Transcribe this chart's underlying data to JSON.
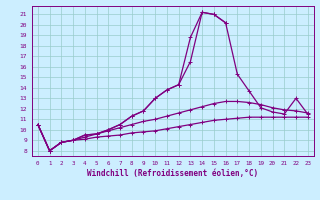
{
  "background_color": "#cceeff",
  "line_color": "#800080",
  "grid_color": "#99cccc",
  "xlabel": "Windchill (Refroidissement éolien,°C)",
  "xlabel_color": "#800080",
  "xticks": [
    0,
    1,
    2,
    3,
    4,
    5,
    6,
    7,
    8,
    9,
    10,
    11,
    12,
    13,
    14,
    15,
    16,
    17,
    18,
    19,
    20,
    21,
    22,
    23
  ],
  "yticks": [
    8,
    9,
    10,
    11,
    12,
    13,
    14,
    15,
    16,
    17,
    18,
    19,
    20,
    21
  ],
  "xlim": [
    -0.5,
    23.5
  ],
  "ylim": [
    7.5,
    21.8
  ],
  "line1_x": [
    0,
    1,
    2,
    3,
    4,
    5,
    6,
    7,
    8,
    9,
    10,
    11,
    12,
    13,
    14,
    15,
    16,
    17,
    18,
    19,
    20,
    21,
    22,
    23
  ],
  "line1_y": [
    10.5,
    8.0,
    8.8,
    9.0,
    9.5,
    9.6,
    10.0,
    10.5,
    11.3,
    11.8,
    13.0,
    13.8,
    14.3,
    16.5,
    21.2,
    21.0,
    20.2,
    15.3,
    13.7,
    12.1,
    11.7,
    11.5,
    13.0,
    11.5
  ],
  "line2_x": [
    0,
    1,
    2,
    3,
    4,
    5,
    6,
    7,
    8,
    9,
    10,
    11,
    12,
    13,
    14,
    15,
    16,
    17
  ],
  "line2_y": [
    10.5,
    8.0,
    8.8,
    9.0,
    9.5,
    9.6,
    10.0,
    10.5,
    11.3,
    11.8,
    13.0,
    13.8,
    14.3,
    18.8,
    21.2,
    21.0,
    20.2,
    null
  ],
  "line3_x": [
    0,
    1,
    2,
    3,
    4,
    5,
    6,
    7,
    8,
    9,
    10,
    11,
    12,
    13,
    14,
    15,
    16,
    17,
    18,
    19,
    20,
    21,
    22,
    23
  ],
  "line3_y": [
    10.5,
    8.0,
    8.8,
    9.0,
    9.3,
    9.6,
    9.9,
    10.2,
    10.5,
    10.8,
    11.0,
    11.3,
    11.6,
    11.9,
    12.2,
    12.5,
    12.7,
    12.7,
    12.6,
    12.4,
    12.1,
    11.9,
    11.8,
    11.6
  ],
  "line4_x": [
    0,
    1,
    2,
    3,
    4,
    5,
    6,
    7,
    8,
    9,
    10,
    11,
    12,
    13,
    14,
    15,
    16,
    17,
    18,
    19,
    20,
    21,
    22,
    23
  ],
  "line4_y": [
    10.5,
    8.0,
    8.8,
    9.0,
    9.1,
    9.3,
    9.4,
    9.5,
    9.7,
    9.8,
    9.9,
    10.1,
    10.3,
    10.5,
    10.7,
    10.9,
    11.0,
    11.1,
    11.2,
    11.2,
    11.2,
    11.2,
    11.2,
    11.2
  ]
}
